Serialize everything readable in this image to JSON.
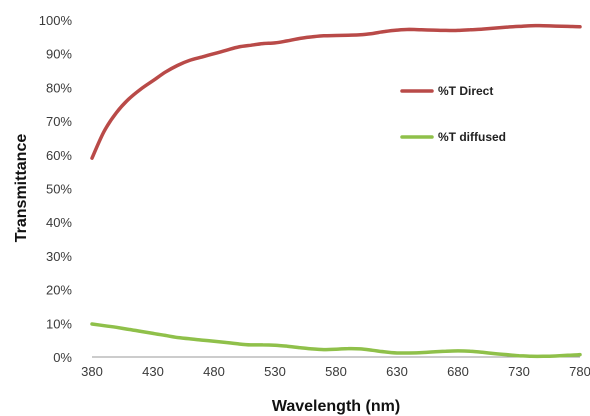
{
  "chart_data": {
    "type": "line",
    "xlabel": "Wavelength (nm)",
    "ylabel": "Transmittance",
    "xlim": [
      380,
      780
    ],
    "ylim": [
      0,
      100
    ],
    "xticks": [
      380,
      430,
      480,
      530,
      580,
      630,
      680,
      730,
      780
    ],
    "xtick_labels": [
      "380",
      "430",
      "480",
      "530",
      "580",
      "630",
      "680",
      "730",
      "780"
    ],
    "yticks": [
      0,
      10,
      20,
      30,
      40,
      50,
      60,
      70,
      80,
      90,
      100
    ],
    "ytick_labels": [
      "0%",
      "10%",
      "20%",
      "30%",
      "40%",
      "50%",
      "60%",
      "70%",
      "80%",
      "90%",
      "100%"
    ],
    "grid": false,
    "legend_position": "right",
    "series": [
      {
        "name": "%T Direct",
        "color": "#b94a48",
        "x": [
          380,
          390,
          400,
          410,
          420,
          430,
          440,
          450,
          460,
          470,
          480,
          490,
          500,
          510,
          520,
          530,
          540,
          550,
          560,
          570,
          580,
          590,
          600,
          610,
          620,
          630,
          640,
          650,
          660,
          670,
          680,
          690,
          700,
          710,
          720,
          730,
          740,
          750,
          760,
          770,
          780
        ],
        "y": [
          59,
          67,
          72.5,
          76.5,
          79.5,
          82,
          84.5,
          86.5,
          88,
          89,
          90,
          91,
          92,
          92.5,
          93,
          93.2,
          93.8,
          94.5,
          95,
          95.3,
          95.4,
          95.5,
          95.6,
          96,
          96.6,
          97,
          97.2,
          97.1,
          97,
          96.9,
          96.9,
          97.1,
          97.3,
          97.6,
          97.9,
          98.1,
          98.3,
          98.3,
          98.2,
          98.1,
          98.0
        ]
      },
      {
        "name": "%T diffused",
        "color": "#8fc04a",
        "x": [
          380,
          390,
          400,
          410,
          420,
          430,
          440,
          450,
          460,
          470,
          480,
          490,
          500,
          510,
          520,
          530,
          540,
          550,
          560,
          570,
          580,
          590,
          600,
          610,
          620,
          630,
          640,
          650,
          660,
          670,
          680,
          690,
          700,
          710,
          720,
          730,
          740,
          750,
          760,
          770,
          780
        ],
        "y": [
          9.8,
          9.3,
          8.8,
          8.2,
          7.6,
          7.0,
          6.4,
          5.8,
          5.4,
          5.0,
          4.7,
          4.3,
          3.9,
          3.6,
          3.6,
          3.5,
          3.2,
          2.8,
          2.4,
          2.2,
          2.3,
          2.5,
          2.4,
          2.0,
          1.5,
          1.2,
          1.2,
          1.3,
          1.5,
          1.7,
          1.8,
          1.7,
          1.4,
          1.0,
          0.7,
          0.4,
          0.2,
          0.2,
          0.3,
          0.5,
          0.7
        ]
      }
    ]
  }
}
